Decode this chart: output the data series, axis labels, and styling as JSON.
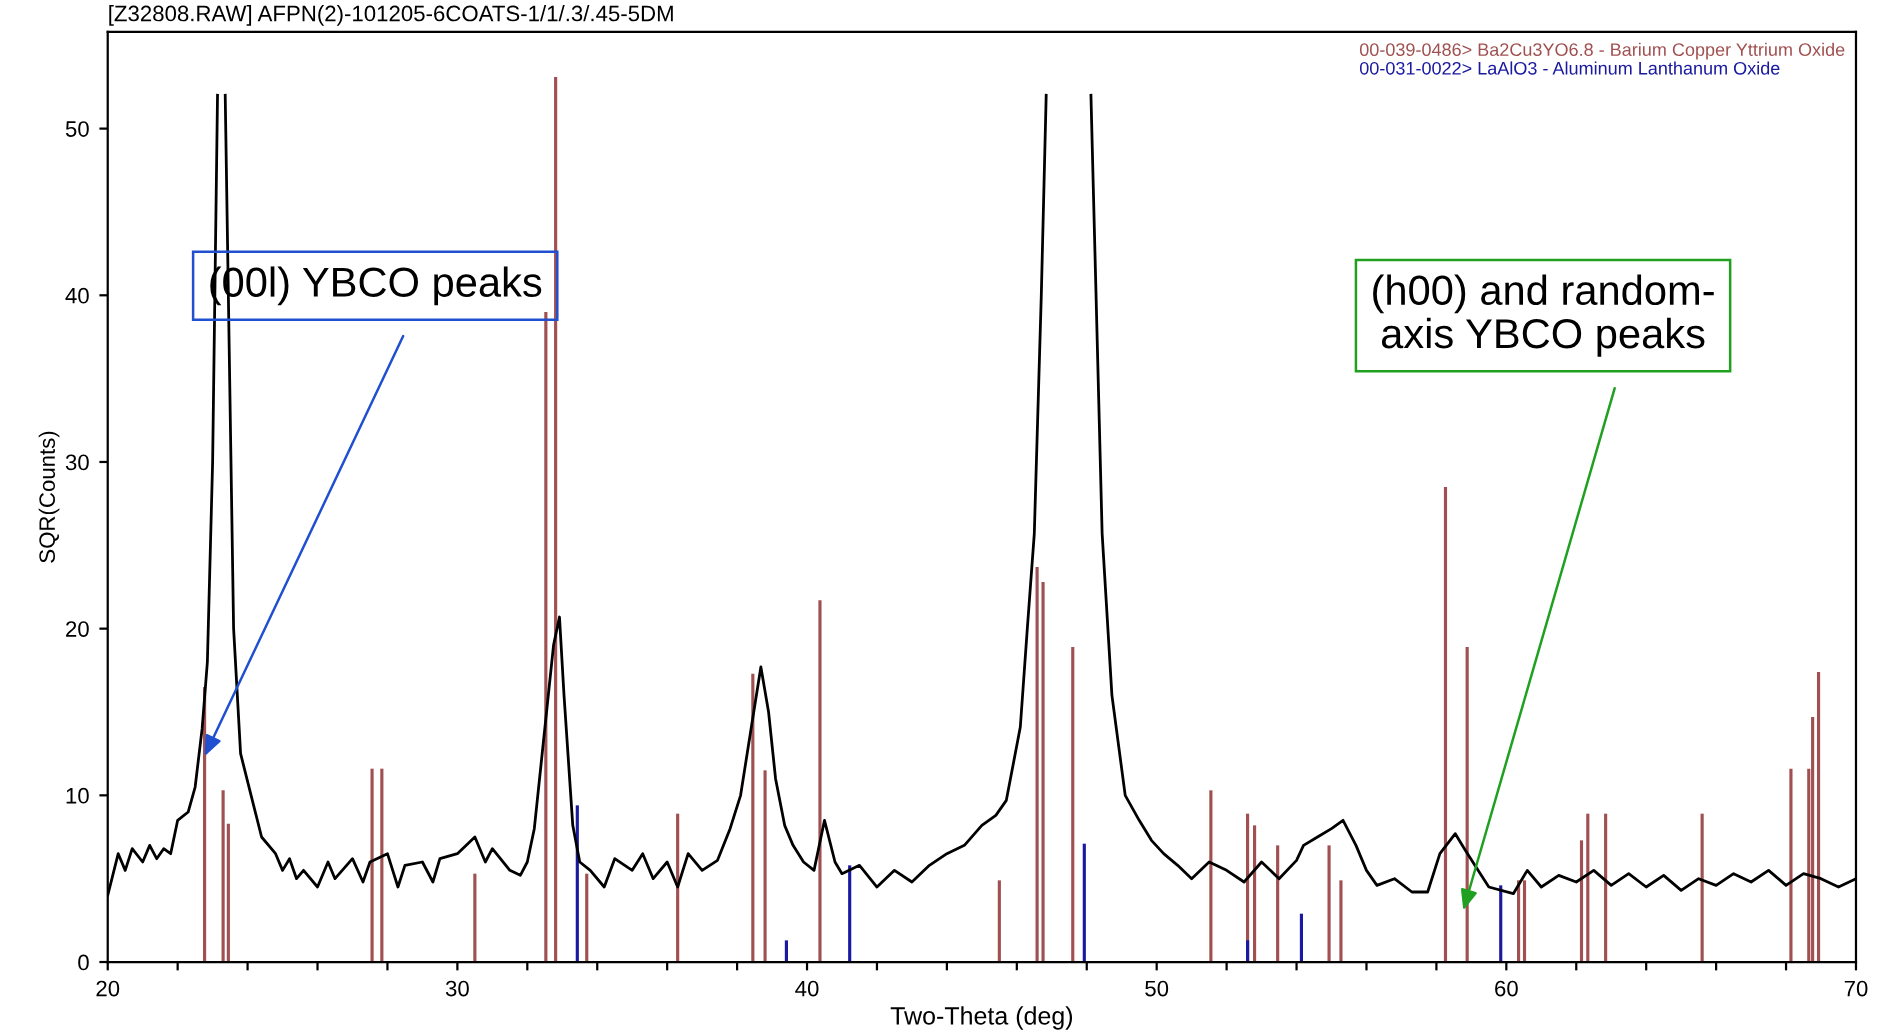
{
  "chart_data": {
    "type": "line",
    "title": "[Z32808.RAW] AFPN(2)-101205-6COATS-1/1/.3/.45-5DM",
    "xlabel": "Two-Theta (deg)",
    "ylabel": "SQR(Counts)",
    "xlim": [
      20,
      70
    ],
    "ylim": [
      0,
      55.8
    ],
    "xticks": [
      20,
      {
        "value": 22,
        "label": null
      },
      {
        "value": 24,
        "label": null
      },
      {
        "value": 26,
        "label": null
      },
      {
        "value": 28,
        "label": null
      },
      30,
      {
        "value": 32,
        "label": null
      },
      {
        "value": 34,
        "label": null
      },
      {
        "value": 36,
        "label": null
      },
      {
        "value": 38,
        "label": null
      },
      40,
      {
        "value": 42,
        "label": null
      },
      {
        "value": 44,
        "label": null
      },
      {
        "value": 46,
        "label": null
      },
      {
        "value": 48,
        "label": null
      },
      50,
      {
        "value": 52,
        "label": null
      },
      {
        "value": 54,
        "label": null
      },
      {
        "value": 56,
        "label": null
      },
      {
        "value": 58,
        "label": null
      },
      60,
      {
        "value": 62,
        "label": null
      },
      {
        "value": 64,
        "label": null
      },
      {
        "value": 66,
        "label": null
      },
      {
        "value": 68,
        "label": null
      },
      70
    ],
    "yticks": [
      0,
      10,
      20,
      30,
      40,
      50
    ],
    "grid": false,
    "legend": "top right",
    "series": [
      {
        "color": "#000000",
        "x": [
          20.0,
          20.3,
          20.5,
          20.7,
          21.0,
          21.2,
          21.4,
          21.6,
          21.8,
          22.0,
          22.3,
          22.5,
          22.7,
          22.85,
          23.0,
          23.14,
          23.25,
          23.36,
          23.45,
          23.6,
          23.8,
          24.1,
          24.4,
          24.8,
          25.0,
          25.2,
          25.4,
          25.6,
          26.0,
          26.3,
          26.5,
          27.0,
          27.3,
          27.5,
          28.0,
          28.3,
          28.5,
          29.0,
          29.3,
          29.5,
          30.0,
          30.5,
          30.8,
          31.0,
          31.5,
          31.8,
          32.0,
          32.2,
          32.4,
          32.6,
          32.75,
          32.92,
          33.05,
          33.3,
          33.5,
          33.8,
          34.2,
          34.5,
          35.0,
          35.3,
          35.6,
          36.0,
          36.3,
          36.6,
          37.0,
          37.44,
          37.8,
          38.1,
          38.4,
          38.68,
          38.9,
          39.1,
          39.36,
          39.6,
          39.9,
          40.2,
          40.5,
          40.8,
          41.0,
          41.5,
          42.0,
          42.5,
          43.0,
          43.5,
          44.0,
          44.5,
          45.0,
          45.4,
          45.7,
          46.1,
          46.3,
          46.5,
          46.7,
          46.84,
          47.5,
          48.12,
          48.44,
          48.72,
          49.1,
          49.5,
          49.85,
          50.2,
          50.6,
          51.0,
          51.5,
          52.0,
          52.5,
          53.0,
          53.5,
          54.0,
          54.2,
          54.6,
          55.0,
          55.33,
          55.7,
          56.0,
          56.3,
          56.8,
          57.3,
          57.75,
          58.1,
          58.54,
          58.8,
          59.1,
          59.5,
          60.2,
          60.6,
          61.0,
          61.5,
          62.0,
          62.5,
          63.0,
          63.5,
          64.0,
          64.5,
          65.0,
          65.5,
          66.0,
          66.5,
          67.0,
          67.5,
          68.0,
          68.5,
          69.0,
          69.5,
          70.0
        ],
        "values": [
          4.0,
          6.5,
          5.5,
          6.8,
          6.0,
          7.0,
          6.2,
          6.8,
          6.5,
          8.5,
          9.0,
          10.5,
          14.0,
          18.0,
          30.0,
          52.0,
          null,
          52.0,
          40.0,
          20.0,
          12.5,
          10.0,
          7.5,
          6.5,
          5.5,
          6.2,
          5.0,
          5.5,
          4.5,
          6.0,
          5.0,
          6.2,
          4.8,
          6.0,
          6.5,
          4.5,
          5.8,
          6.0,
          4.8,
          6.2,
          6.5,
          7.5,
          6.0,
          6.8,
          5.5,
          5.2,
          6.0,
          8.0,
          12.0,
          16.0,
          19.0,
          20.7,
          16.0,
          8.2,
          6.0,
          5.5,
          4.5,
          6.2,
          5.5,
          6.5,
          5.0,
          6.0,
          4.5,
          6.5,
          5.5,
          6.1,
          8.0,
          10.0,
          14.0,
          17.7,
          15.0,
          11.0,
          8.2,
          7.0,
          6.0,
          5.5,
          8.5,
          6.0,
          5.3,
          5.8,
          4.5,
          5.5,
          4.8,
          5.8,
          6.5,
          7.0,
          8.2,
          8.8,
          9.7,
          14.1,
          20.0,
          25.7,
          40.0,
          52.0,
          null,
          52.0,
          25.7,
          16.0,
          10.0,
          8.5,
          7.3,
          6.5,
          5.8,
          5.0,
          6.0,
          5.5,
          4.8,
          6.0,
          5.0,
          6.1,
          7.0,
          7.5,
          8.0,
          8.5,
          7.0,
          5.5,
          4.6,
          5.0,
          4.2,
          4.2,
          6.5,
          7.7,
          6.8,
          5.8,
          4.5,
          4.1,
          5.5,
          4.5,
          5.2,
          4.8,
          5.5,
          4.6,
          5.3,
          4.5,
          5.2,
          4.3,
          5.0,
          4.6,
          5.3,
          4.8,
          5.5,
          4.6,
          5.3,
          5.0,
          4.5,
          5.0
        ]
      },
      {
        "type": "bar",
        "name": "00-039-0486> Ba2Cu3YO6.8 - Barium Copper Yttrium Oxide",
        "color": "#a05050",
        "x": [
          22.77,
          23.3,
          23.45,
          27.56,
          27.84,
          30.5,
          32.53,
          32.81,
          33.7,
          36.3,
          38.45,
          38.8,
          40.37,
          45.5,
          46.58,
          46.75,
          47.6,
          51.55,
          52.6,
          52.8,
          53.46,
          54.93,
          55.27,
          58.26,
          58.88,
          60.35,
          60.52,
          62.15,
          62.33,
          62.84,
          65.6,
          68.14,
          68.65,
          68.76,
          68.93
        ],
        "values": [
          16.5,
          10.3,
          8.3,
          11.6,
          11.6,
          5.3,
          39,
          53.1,
          5.3,
          8.9,
          17.3,
          11.5,
          21.7,
          4.9,
          23.7,
          22.8,
          18.9,
          10.3,
          8.9,
          8.2,
          7.0,
          7.0,
          4.9,
          28.5,
          18.9,
          4.9,
          4.9,
          7.3,
          8.9,
          8.9,
          8.9,
          11.6,
          11.6,
          14.7,
          17.4
        ]
      },
      {
        "type": "bar",
        "name": "00-031-0022> LaAlO3 - Aluminum Lanthanum Oxide",
        "color": "#1a1aa0",
        "x": [
          33.43,
          39.41,
          41.22,
          47.93,
          52.6,
          54.14,
          59.84
        ],
        "values": [
          9.4,
          1.3,
          5.8,
          7.1,
          1.3,
          2.9,
          4.6
        ]
      }
    ],
    "annotations": [
      {
        "text": "(00l) YBCO peaks",
        "x": 22.77,
        "y": 12.35
      },
      {
        "text": "(h00) and random-\naxis YBCO peaks",
        "x": 58.77,
        "y": 3.1
      }
    ]
  }
}
